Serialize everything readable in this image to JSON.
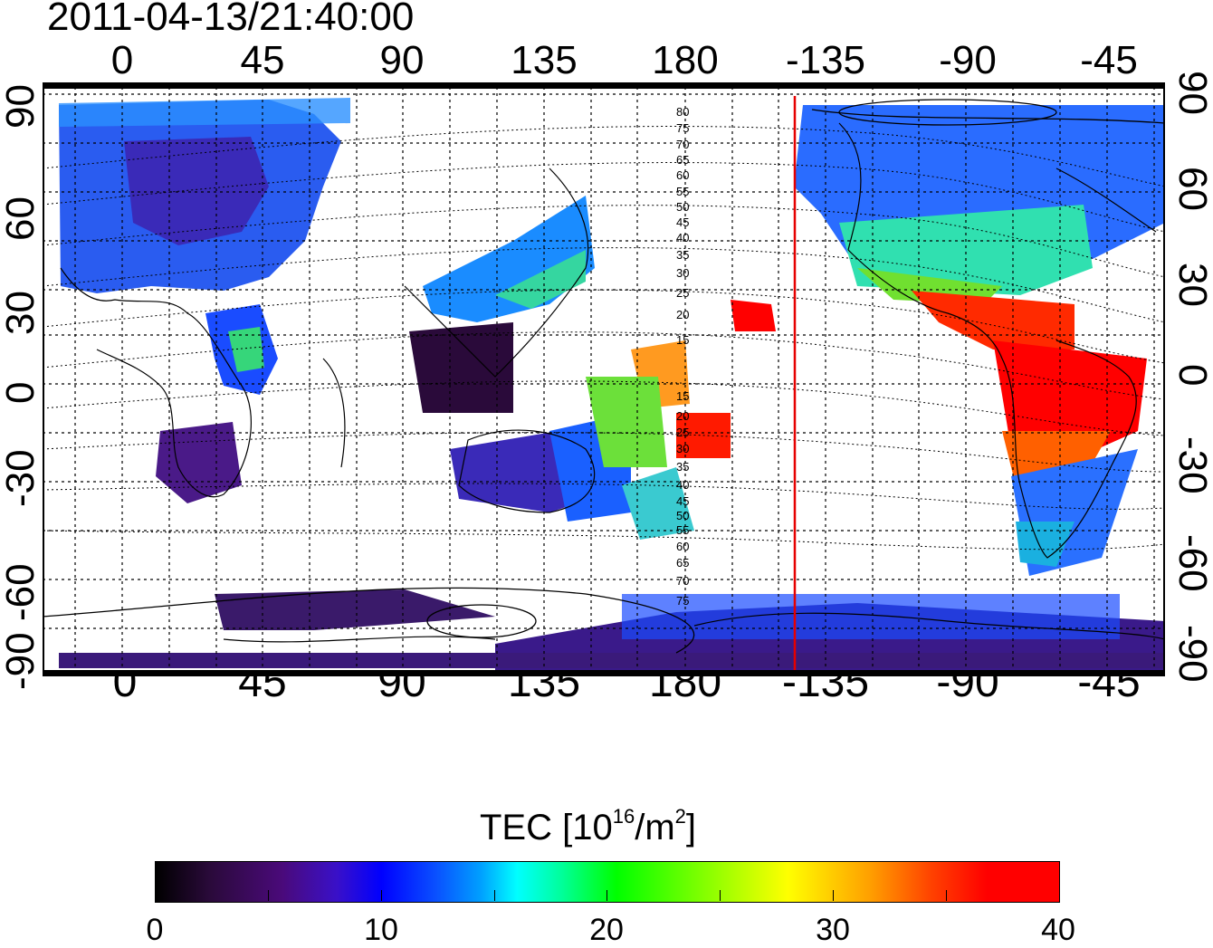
{
  "title": "2011-04-13/21:40:00",
  "map": {
    "top_lon_ticks": [
      "0",
      "45",
      "90",
      "135",
      "180",
      "-135",
      "-90",
      "-45"
    ],
    "bottom_lon_ticks": [
      "0",
      "45",
      "90",
      "135",
      "180",
      "-135",
      "-90",
      "-45"
    ],
    "lat_ticks": [
      "90",
      "60",
      "30",
      "0",
      "-30",
      "-60",
      "-90"
    ],
    "contour_labels_upper": [
      "80",
      "75",
      "70",
      "65",
      "60",
      "55",
      "50",
      "45",
      "40",
      "35",
      "30",
      "25",
      "20",
      "15"
    ],
    "contour_labels_lower": [
      "15",
      "20",
      "25",
      "30",
      "35",
      "40",
      "45",
      "50",
      "55",
      "60",
      "65",
      "70",
      "75"
    ],
    "colors": {
      "frame": "#000000",
      "grid": "#000000",
      "marker_line": "#e60000"
    }
  },
  "colorbar": {
    "title_text": "TEC  [10",
    "title_sup": "16",
    "title_unit": "/m",
    "title_sup2": "2",
    "title_end": "]",
    "ticks": [
      "0",
      "10",
      "20",
      "30",
      "40"
    ],
    "range": [
      0,
      40
    ]
  }
}
